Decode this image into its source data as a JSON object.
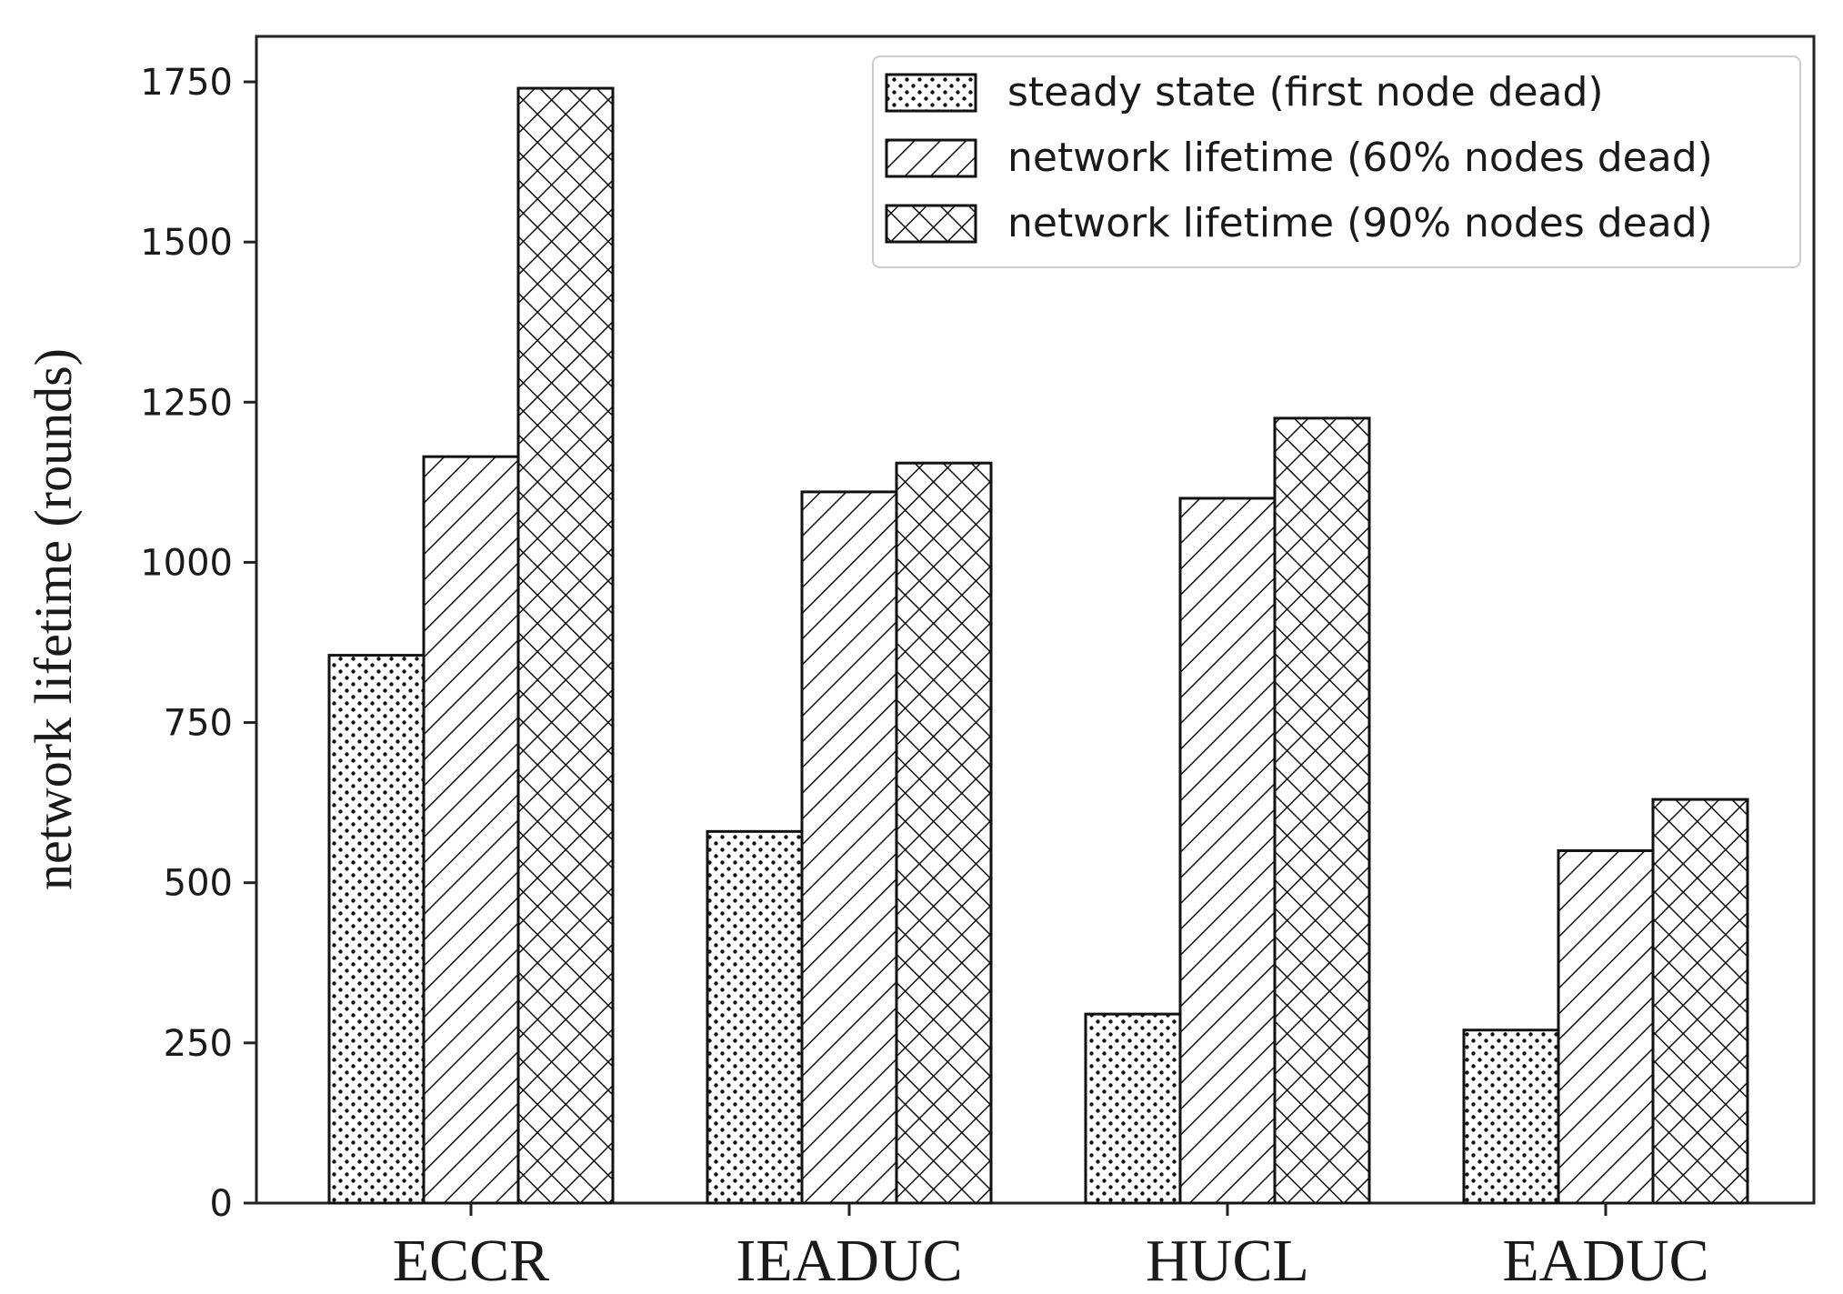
{
  "chart_data": {
    "type": "bar",
    "title": "",
    "xlabel": "",
    "ylabel": "network lifetime (rounds)",
    "categories": [
      "ECCR",
      "IEADUC",
      "HUCL",
      "EADUC"
    ],
    "series": [
      {
        "name": "steady state (first node dead)",
        "pattern": "dots",
        "values": [
          855,
          580,
          295,
          270
        ]
      },
      {
        "name": "network lifetime (60% nodes dead)",
        "pattern": "diagonal-hatch",
        "values": [
          1165,
          1110,
          1100,
          550
        ]
      },
      {
        "name": "network lifetime (90% nodes dead)",
        "pattern": "cross-hatch",
        "values": [
          1740,
          1155,
          1225,
          630
        ]
      }
    ],
    "ylim": [
      0,
      1850
    ],
    "yticks": [
      0,
      250,
      500,
      750,
      1000,
      1250,
      1500,
      1750
    ],
    "grid": false,
    "legend_position": "top-right",
    "colors": {
      "bar_fill": "#ffffff",
      "bar_stroke": "#111111",
      "axis": "#222222"
    }
  }
}
